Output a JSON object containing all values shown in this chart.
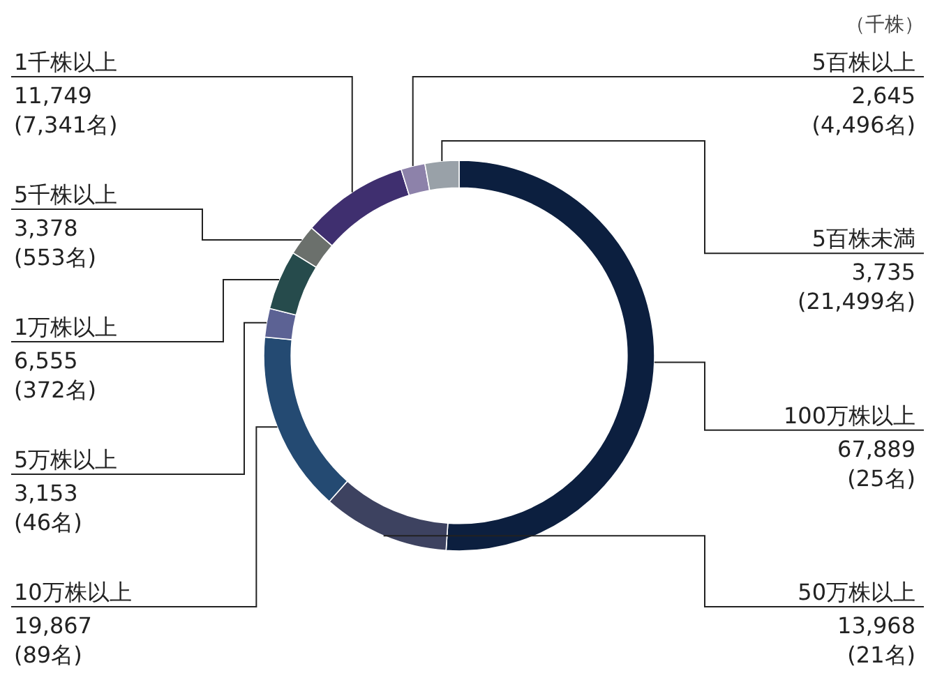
{
  "chart_data": {
    "type": "donut",
    "categories": [
      "100万株以上",
      "50万株以上",
      "10万株以上",
      "5万株以上",
      "1万株以上",
      "5千株以上",
      "1千株以上",
      "5百株以上",
      "5百株未満"
    ],
    "values": [
      67889,
      13968,
      19867,
      3153,
      6555,
      3378,
      11749,
      2645,
      3735
    ],
    "colors": [
      "#0c1f3f",
      "#3d4260",
      "#244a72",
      "#5c6294",
      "#264b4c",
      "#6b706c",
      "#3f2f6f",
      "#8d82aa",
      "#99a1a8"
    ],
    "value_labels": [
      "67,889\n(25名)",
      "13,968\n(21名)",
      "19,867\n(89名)",
      "3,153\n(46名)",
      "6,555\n(372名)",
      "3,378\n(553名)",
      "11,749\n(7,341名)",
      "2,645\n(4,496名)",
      "3,735\n(21,499名)"
    ],
    "annotations": [
      "（千株）"
    ]
  }
}
